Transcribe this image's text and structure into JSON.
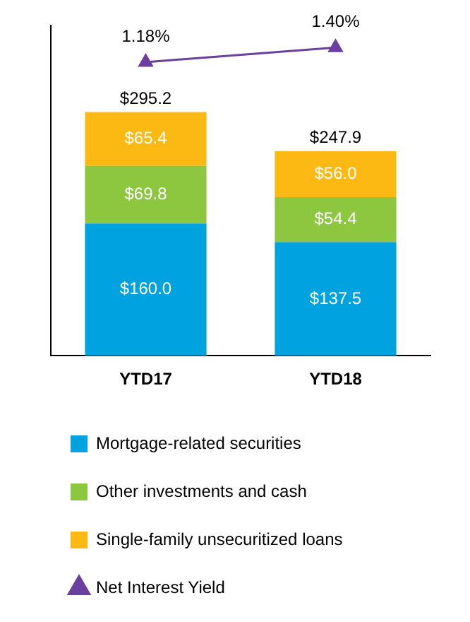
{
  "chart_data": {
    "type": "bar",
    "categories": [
      "YTD17",
      "YTD18"
    ],
    "stacked": true,
    "legend": "bottom",
    "tick_labels": "x",
    "grid": false,
    "ylim": [
      0,
      400
    ],
    "series": [
      {
        "name": "Mortgage-related securities",
        "color": "#00a3e0",
        "values": [
          160.0,
          137.5
        ],
        "value_labels": [
          "$160.0",
          "$137.5"
        ]
      },
      {
        "name": "Other investments and cash",
        "color": "#8dc63f",
        "values": [
          69.8,
          54.4
        ],
        "value_labels": [
          "$69.8",
          "$54.4"
        ]
      },
      {
        "name": "Single-family unsecuritized loans",
        "color": "#fdb913",
        "values": [
          65.4,
          56.0
        ],
        "value_labels": [
          "$65.4",
          "$56.0"
        ]
      },
      {
        "name": "Net Interest Yield",
        "type": "line",
        "axis": "y2",
        "color": "#6b3fa0",
        "marker": "triangle",
        "line_style": "solid",
        "values": [
          1.18,
          1.4
        ],
        "value_labels": [
          "1.18%",
          "1.40%"
        ]
      }
    ],
    "totals": [
      "$295.2",
      "$247.9"
    ]
  }
}
